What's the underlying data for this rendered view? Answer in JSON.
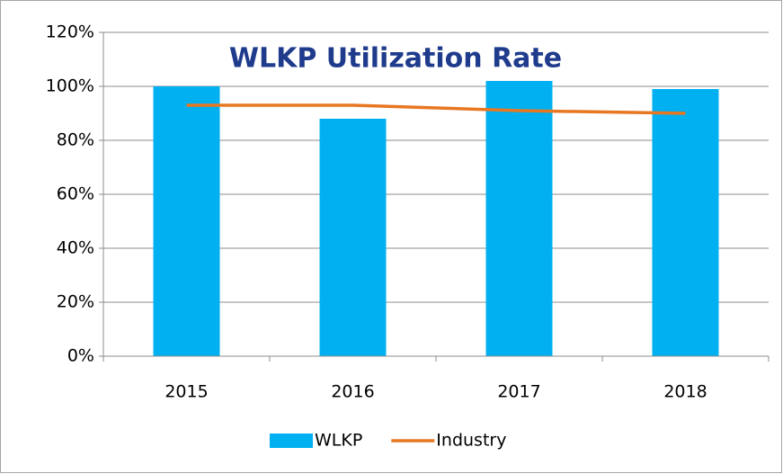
{
  "chart_data": {
    "type": "bar",
    "title": "WLKP Utilization Rate",
    "categories": [
      "2015",
      "2016",
      "2017",
      "2018"
    ],
    "series": [
      {
        "name": "WLKP",
        "type": "bar",
        "color": "#00b0f0",
        "values": [
          100,
          88,
          102,
          99
        ]
      },
      {
        "name": "Industry",
        "type": "line",
        "color": "#e87722",
        "values": [
          93,
          93,
          91,
          90
        ]
      }
    ],
    "ylim": [
      0,
      120
    ],
    "yticks": [
      {
        "value": 0,
        "label": "0%"
      },
      {
        "value": 20,
        "label": "20%"
      },
      {
        "value": 40,
        "label": "40%"
      },
      {
        "value": 60,
        "label": "60%"
      },
      {
        "value": 80,
        "label": "80%"
      },
      {
        "value": 100,
        "label": "100%"
      },
      {
        "value": 120,
        "label": "120%"
      }
    ],
    "grid": true,
    "legend": "bottom"
  }
}
